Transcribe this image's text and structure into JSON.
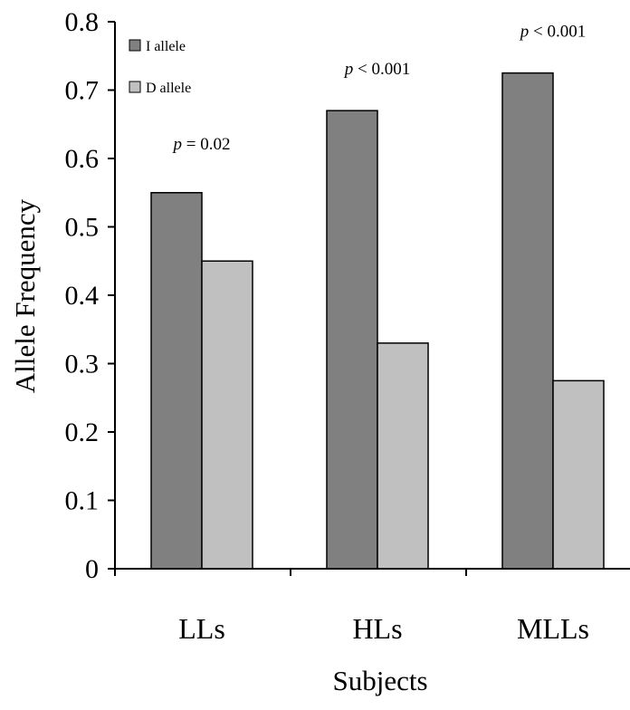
{
  "chart_data": {
    "type": "bar",
    "title": "",
    "xlabel": "Subjects",
    "ylabel": "Allele Frequency",
    "categories": [
      "LLs",
      "HLs",
      "MLLs"
    ],
    "series": [
      {
        "name": "I allele",
        "values": [
          0.55,
          0.67,
          0.725
        ],
        "color": "#808080"
      },
      {
        "name": "D allele",
        "values": [
          0.45,
          0.33,
          0.275
        ],
        "color": "#c0c0c0"
      }
    ],
    "ylim": [
      0,
      0.8
    ],
    "yticks": [
      "0",
      "0.1",
      "0.2",
      "0.3",
      "0.4",
      "0.5",
      "0.6",
      "0.7",
      "0.8"
    ],
    "grid": false,
    "legend_position": "top-left",
    "annotations": [
      {
        "category": "LLs",
        "p_symbol": "p",
        "text": " = 0.02"
      },
      {
        "category": "HLs",
        "p_symbol": "p",
        "text": " < 0.001"
      },
      {
        "category": "MLLs",
        "p_symbol": "p",
        "text": " < 0.001"
      }
    ]
  }
}
